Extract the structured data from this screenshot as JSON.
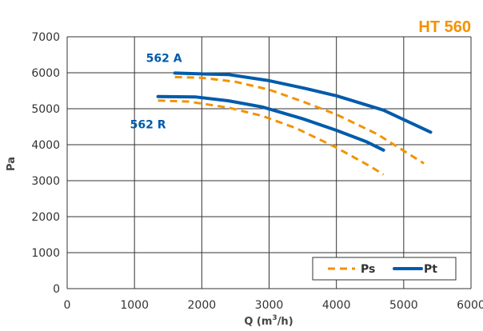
{
  "chart_data": {
    "type": "line",
    "title_prefix": "HT ",
    "title_suffix": "560",
    "xlabel_main": "Q (m",
    "xlabel_sup": "3",
    "xlabel_end": "/h)",
    "ylabel": "Pa",
    "xlim": [
      0,
      6000
    ],
    "ylim": [
      0,
      7000
    ],
    "x_ticks": [
      "0",
      "1000",
      "2000",
      "3000",
      "4000",
      "5000",
      "6000"
    ],
    "y_ticks": [
      "0",
      "1000",
      "2000",
      "3000",
      "4000",
      "5000",
      "6000",
      "7000"
    ],
    "grid": true,
    "legend_position": "bottom-right",
    "legend": [
      {
        "label": "Ps",
        "style": "dashed",
        "color": "#F39200"
      },
      {
        "label": "Pt",
        "style": "solid",
        "color": "#005BAA"
      }
    ],
    "series": [
      {
        "label": "562 A",
        "curve": "Pt",
        "style": "solid",
        "color": "#005BAA",
        "x": [
          1600,
          2000,
          2400,
          3000,
          3500,
          4000,
          4700,
          5400
        ],
        "y": [
          5990,
          5970,
          5950,
          5780,
          5580,
          5360,
          4960,
          4350
        ]
      },
      {
        "curve": "Ps",
        "style": "dashed",
        "color": "#F39200",
        "x": [
          1600,
          2000,
          2500,
          3000,
          3500,
          4000,
          4600,
          5300
        ],
        "y": [
          5880,
          5860,
          5750,
          5530,
          5200,
          4840,
          4300,
          3480
        ]
      },
      {
        "label": "562 R",
        "curve": "Pt",
        "style": "solid",
        "color": "#005BAA",
        "x": [
          1350,
          1900,
          2400,
          2900,
          3500,
          4000,
          4450,
          4700
        ],
        "y": [
          5340,
          5330,
          5220,
          5050,
          4720,
          4400,
          4080,
          3850
        ]
      },
      {
        "curve": "Ps",
        "style": "dashed",
        "color": "#F39200",
        "x": [
          1350,
          1800,
          2400,
          2900,
          3400,
          4000,
          4500,
          4700
        ],
        "y": [
          5230,
          5200,
          5030,
          4800,
          4460,
          3920,
          3400,
          3170
        ]
      }
    ]
  }
}
